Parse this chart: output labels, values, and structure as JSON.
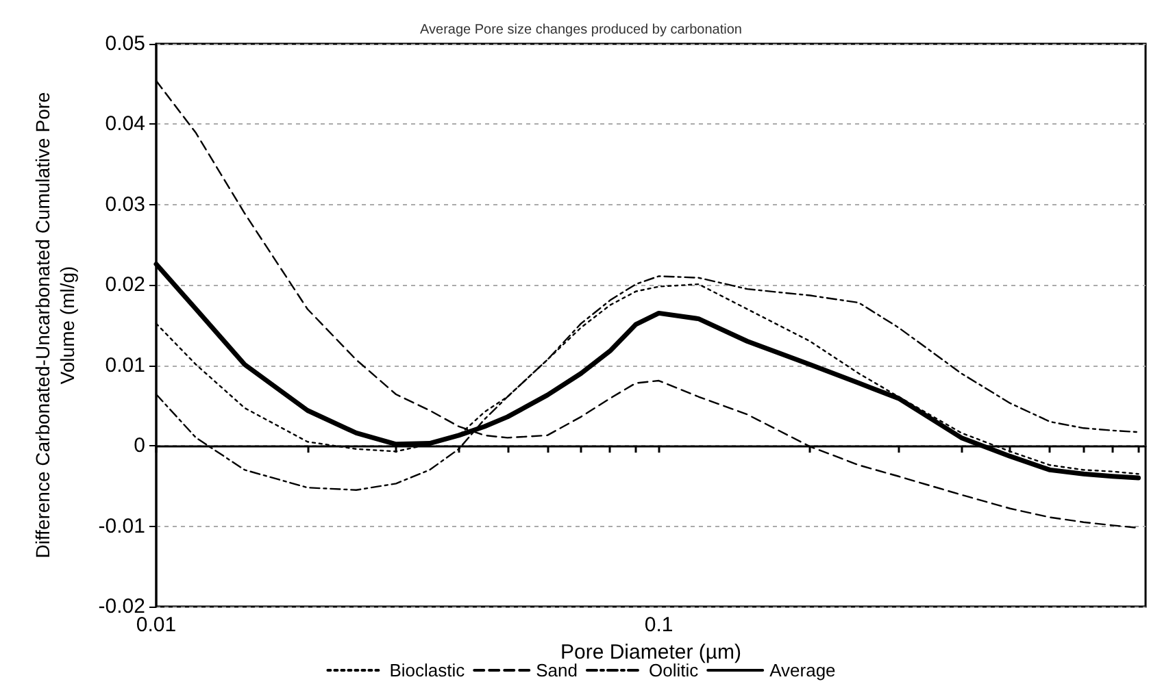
{
  "chart_data": {
    "type": "line",
    "title": "Average Pore size changes produced by carbonation",
    "xlabel": "Pore Diameter (µm)",
    "ylabel": "Difference Carbonated-Uncarbonated Cumulative Pore\nVolume (ml/g)",
    "log": "x",
    "xlim": [
      0.01,
      0.93
    ],
    "xticks": [
      0.01,
      {
        "value": 0.02,
        "label": null
      },
      {
        "value": 0.03,
        "label": null
      },
      {
        "value": 0.04,
        "label": null
      },
      {
        "value": 0.05,
        "label": null
      },
      {
        "value": 0.06,
        "label": null
      },
      {
        "value": 0.07,
        "label": null
      },
      {
        "value": 0.08,
        "label": null
      },
      {
        "value": 0.09,
        "label": null
      },
      0.1,
      {
        "value": 0.2,
        "label": null
      },
      {
        "value": 0.3,
        "label": null
      },
      {
        "value": 0.4,
        "label": null
      },
      {
        "value": 0.5,
        "label": null
      },
      {
        "value": 0.6,
        "label": null
      },
      {
        "value": 0.7,
        "label": null
      },
      {
        "value": 0.8,
        "label": null
      },
      {
        "value": 0.9,
        "label": null
      }
    ],
    "ylim": [
      -0.02,
      0.05
    ],
    "yticks": [
      -0.02,
      -0.01,
      0,
      0.01,
      0.02,
      0.03,
      0.04,
      0.05
    ],
    "grid": "y",
    "legend": "bottom",
    "marker": "none",
    "x": [
      0.01,
      0.012,
      0.015,
      0.02,
      0.025,
      0.03,
      0.035,
      0.04,
      0.045,
      0.05,
      0.06,
      0.07,
      0.08,
      0.09,
      0.1,
      0.12,
      0.15,
      0.2,
      0.25,
      0.3,
      0.4,
      0.5,
      0.6,
      0.7,
      0.8,
      0.9
    ],
    "series": [
      {
        "name": "Bioclastic",
        "color": "#000000",
        "line_style": "dotted",
        "values": [
          0.0152,
          0.0101,
          0.0047,
          0.0005,
          -0.0004,
          -0.0007,
          0.0002,
          0.0013,
          0.0042,
          0.0061,
          0.0107,
          0.0147,
          0.0175,
          0.0192,
          0.0198,
          0.0201,
          0.017,
          0.013,
          0.009,
          0.0061,
          0.0016,
          -0.0007,
          -0.0024,
          -0.003,
          -0.0032,
          -0.0035
        ]
      },
      {
        "name": "Sand",
        "color": "#000000",
        "line_style": "dashed",
        "values": [
          0.0454,
          0.0389,
          0.0289,
          0.017,
          0.0107,
          0.0064,
          0.0044,
          0.0024,
          0.0013,
          0.001,
          0.0013,
          0.0036,
          0.0059,
          0.0078,
          0.0081,
          0.0061,
          0.0039,
          -0.0001,
          -0.0024,
          -0.0038,
          -0.0061,
          -0.0078,
          -0.0089,
          -0.0095,
          -0.0099,
          -0.0102
        ]
      },
      {
        "name": "Oolitic",
        "color": "#000000",
        "line_style": "dashdot",
        "values": [
          0.0064,
          0.001,
          -0.003,
          -0.0052,
          -0.0055,
          -0.0047,
          -0.003,
          -0.0004,
          0.0033,
          0.0061,
          0.0107,
          0.0152,
          0.0181,
          0.0201,
          0.0211,
          0.0209,
          0.0195,
          0.0187,
          0.0178,
          0.0147,
          0.009,
          0.0053,
          0.003,
          0.0022,
          0.0019,
          0.0017
        ]
      },
      {
        "name": "Average",
        "color": "#000000",
        "line_style": "solid",
        "values": [
          0.0226,
          0.017,
          0.0101,
          0.0044,
          0.0016,
          0.0002,
          0.0003,
          0.0013,
          0.0024,
          0.0036,
          0.0063,
          0.009,
          0.0118,
          0.0151,
          0.0165,
          0.0158,
          0.013,
          0.0101,
          0.0078,
          0.0059,
          0.001,
          -0.0013,
          -0.003,
          -0.0035,
          -0.0038,
          -0.004
        ]
      }
    ]
  }
}
